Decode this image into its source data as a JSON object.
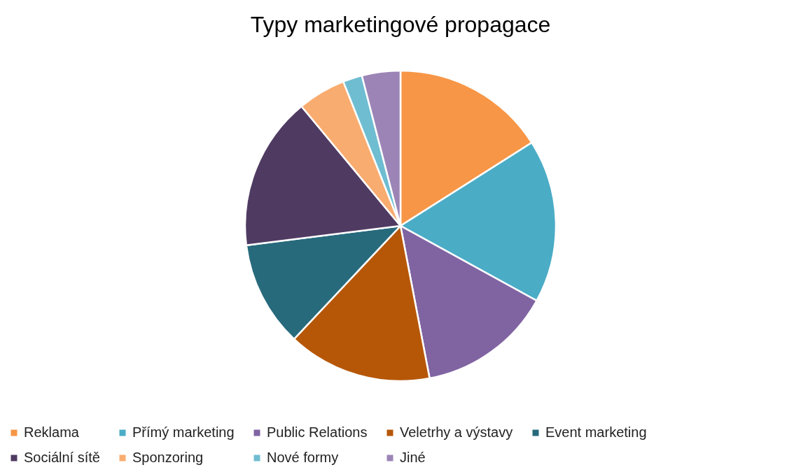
{
  "chart_data": {
    "type": "pie",
    "title": "Typy marketingové propagace",
    "categories": [
      "Reklama",
      "Přímý marketing",
      "Public Relations",
      "Veletrhy a výstavy",
      "Event marketing",
      "Sociální sítě",
      "Sponzoring",
      "Nové formy",
      "Jiné"
    ],
    "values": [
      16,
      17,
      14,
      15,
      11,
      16,
      5,
      2,
      4
    ],
    "colors": [
      "#f79646",
      "#4bacc6",
      "#8064a2",
      "#b65708",
      "#276a7c",
      "#4f3b62",
      "#f9ac6f",
      "#6fbdd1",
      "#9c85b6"
    ],
    "legend": "bottom"
  }
}
